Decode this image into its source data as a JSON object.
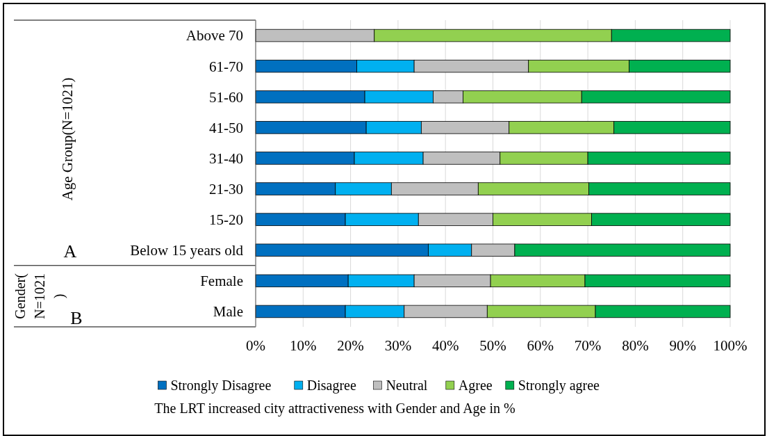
{
  "chart_data": {
    "type": "bar",
    "orientation": "horizontal",
    "stacked": true,
    "title": "The LRT increased city attractiveness with Gender and Age in %",
    "categories": [
      "Above 70",
      "61-70",
      "51-60",
      "41-50",
      "31-40",
      "21-30",
      "15-20",
      "Below 15 years old",
      "Female",
      "Male"
    ],
    "series": [
      {
        "name": "Strongly Disagree",
        "color": "#0070c0",
        "values": [
          0,
          21.3,
          23.0,
          23.3,
          20.8,
          16.8,
          18.9,
          36.4,
          19.5,
          18.9
        ]
      },
      {
        "name": "Disagree",
        "color": "#00b0f0",
        "values": [
          0,
          12.1,
          14.4,
          11.6,
          14.5,
          11.8,
          15.4,
          9.1,
          13.9,
          12.4
        ]
      },
      {
        "name": "Neutral",
        "color": "#bfbfbf",
        "values": [
          25.0,
          24.1,
          6.3,
          18.5,
          16.2,
          18.3,
          15.7,
          9.1,
          16.1,
          17.5
        ]
      },
      {
        "name": "Agree",
        "color": "#92d050",
        "values": [
          50.0,
          21.2,
          25.0,
          22.1,
          18.5,
          23.3,
          20.8,
          0,
          19.9,
          22.8
        ]
      },
      {
        "name": "Strongly agree",
        "color": "#00b050",
        "values": [
          25.0,
          21.3,
          31.3,
          24.5,
          30.0,
          29.8,
          29.2,
          45.4,
          30.6,
          28.4
        ]
      }
    ],
    "xlim": [
      0,
      100
    ],
    "xticks": [
      {
        "value": 0,
        "label": "0%"
      },
      {
        "value": 10,
        "label": "10%"
      },
      {
        "value": 20,
        "label": "20%"
      },
      {
        "value": 30,
        "label": "30%"
      },
      {
        "value": 40,
        "label": "40%"
      },
      {
        "value": 50,
        "label": "50%"
      },
      {
        "value": 60,
        "label": "60%"
      },
      {
        "value": 70,
        "label": "70%"
      },
      {
        "value": 80,
        "label": "80%"
      },
      {
        "value": 90,
        "label": "90%"
      },
      {
        "value": 100,
        "label": "100%"
      }
    ],
    "grid": "x",
    "legend": "bottom",
    "annotations": [
      "Age Group(N=1021)",
      "A",
      "Gender(\nN=1021\n)",
      "B"
    ]
  }
}
